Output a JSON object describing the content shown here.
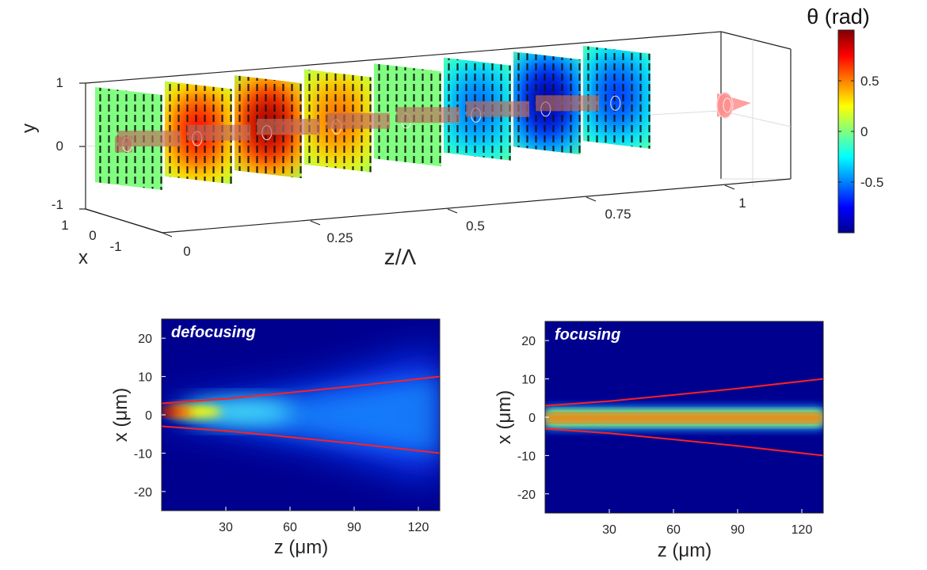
{
  "chart_data": [
    {
      "type": "heatmap",
      "view": "3d",
      "zlabel": "z/Λ",
      "ylabel": "y",
      "xlabel": "x",
      "z_ticks": [
        "0",
        "0.25",
        "0.5",
        "0.75",
        "1"
      ],
      "y_ticks": [
        "1",
        "0",
        "-1"
      ],
      "x_ticks": [
        "1",
        "0",
        "-1"
      ],
      "slice_positions_z": [
        0,
        0.125,
        0.25,
        0.375,
        0.5,
        0.625,
        0.75,
        0.875
      ],
      "slice_peak_theta_rad": [
        0.0,
        0.75,
        0.95,
        0.55,
        0.0,
        -0.55,
        -0.95,
        -0.65
      ],
      "colorbar": {
        "title": "θ (rad)",
        "ticks": [
          "0.5",
          "0",
          "-0.5"
        ],
        "tick_values": [
          0.5,
          0,
          -0.5
        ],
        "range": [
          -1,
          1
        ],
        "colormap": "jet"
      }
    },
    {
      "type": "heatmap",
      "title": "defocusing",
      "xlabel": "z (μm)",
      "ylabel": "x (μm)",
      "xlim": [
        0,
        130
      ],
      "ylim": [
        -25,
        25
      ],
      "x_ticks": [
        "30",
        "60",
        "90",
        "120"
      ],
      "y_ticks": [
        "20",
        "10",
        "0",
        "-10",
        "-20"
      ],
      "beam_width_curve": {
        "z": [
          0,
          30,
          60,
          90,
          130
        ],
        "half_width": [
          3.0,
          4.2,
          5.8,
          7.5,
          10.0
        ],
        "color": "#ff2020"
      }
    },
    {
      "type": "heatmap",
      "title": "focusing",
      "xlabel": "z (μm)",
      "ylabel": "x (μm)",
      "xlim": [
        0,
        130
      ],
      "ylim": [
        -25,
        25
      ],
      "x_ticks": [
        "30",
        "60",
        "90",
        "120"
      ],
      "y_ticks": [
        "20",
        "10",
        "0",
        "-10",
        "-20"
      ],
      "beam_width_curve": {
        "z": [
          0,
          30,
          60,
          90,
          130
        ],
        "half_width": [
          3.0,
          4.2,
          5.8,
          7.5,
          10.0
        ],
        "color": "#ff2020"
      }
    }
  ]
}
